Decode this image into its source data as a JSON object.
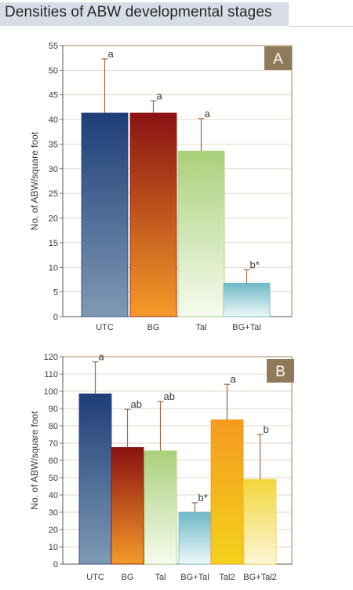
{
  "header": {
    "title": "Densities of ABW developmental stages"
  },
  "colors": {
    "panel_badge": "#8f7a5a",
    "frame": "#a8875c",
    "error_bar": "#9a6a4a",
    "series": {
      "UTC": [
        "#1d3e78",
        "#7f9ab4"
      ],
      "BG": [
        "#8a1212",
        "#f59a28"
      ],
      "Tal": [
        "#a9d07a",
        "#f6fbee"
      ],
      "BG+Tal": [
        "#6fb8c6",
        "#eef8fa"
      ],
      "Tal2": [
        "#f59a1e",
        "#f3d21c"
      ],
      "BG+Tal2": [
        "#f2d63a",
        "#fdf6d8"
      ]
    }
  },
  "chart_data": [
    {
      "type": "bar",
      "panel": "A",
      "ylabel": "No. of ABW/square foot",
      "ylim": [
        0,
        55
      ],
      "yticks": [
        0,
        5,
        10,
        15,
        20,
        25,
        30,
        35,
        40,
        45,
        50,
        55
      ],
      "categories": [
        "UTC",
        "BG",
        "Tal",
        "BG+Tal"
      ],
      "values": [
        41.3,
        41.3,
        33.6,
        6.8
      ],
      "errors": [
        11.0,
        2.5,
        6.6,
        2.7
      ],
      "letters": [
        "a",
        "a",
        "a",
        "b*"
      ]
    },
    {
      "type": "bar",
      "panel": "B",
      "ylabel": "No. of ABW/square foot",
      "ylim": [
        0,
        120
      ],
      "yticks": [
        0,
        10,
        20,
        30,
        40,
        50,
        60,
        70,
        80,
        90,
        100,
        110,
        120
      ],
      "categories": [
        "UTC",
        "BG",
        "Tal",
        "BG+Tal",
        "Tal2",
        "BG+Tal2"
      ],
      "values": [
        98.5,
        67.5,
        65.5,
        30.0,
        83.5,
        49.0
      ],
      "errors": [
        18.5,
        22.0,
        28.5,
        5.5,
        20.5,
        26.0
      ],
      "letters": [
        "a",
        "ab",
        "ab",
        "b*",
        "a",
        "b"
      ]
    }
  ]
}
